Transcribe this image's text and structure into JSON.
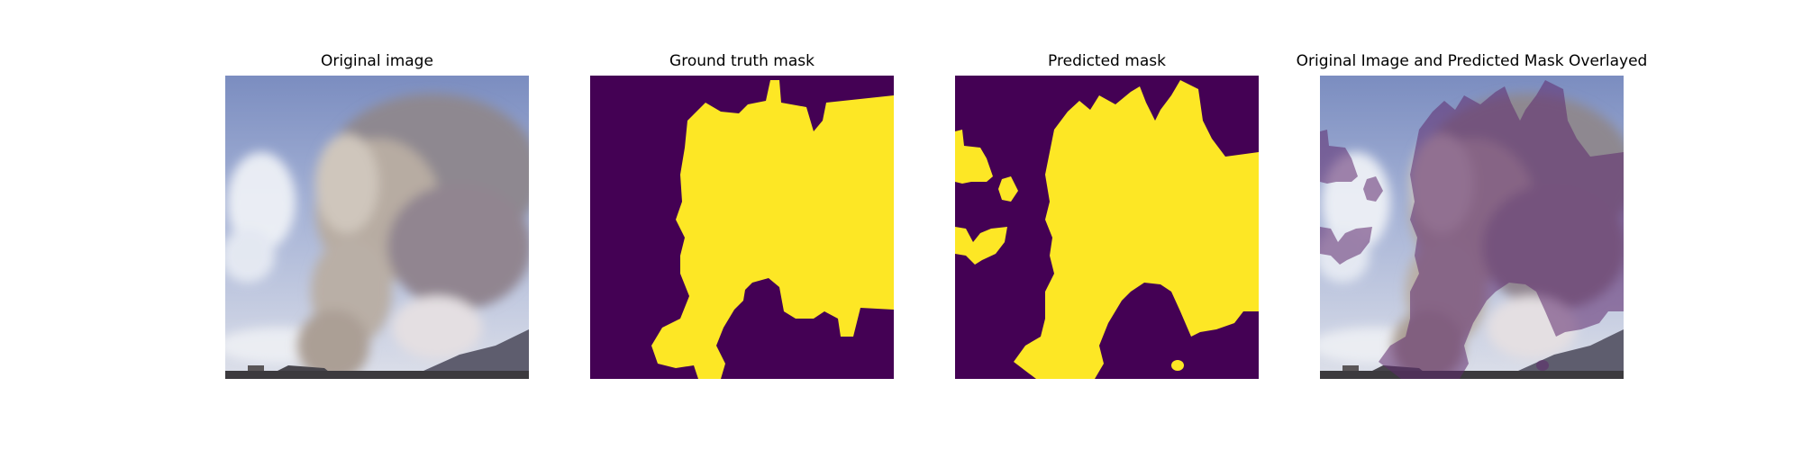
{
  "panels": [
    {
      "title": "Original image"
    },
    {
      "title": "Ground truth mask"
    },
    {
      "title": "Predicted mask"
    },
    {
      "title": "Original Image and Predicted Mask Overlayed"
    }
  ],
  "colors": {
    "mask_background": "#440154",
    "mask_foreground": "#FDE725",
    "sky_top": "#7d8fc2",
    "sky_bottom": "#d6dae8",
    "smoke": "#a39890",
    "overlay_tint": "#5a2a6a"
  }
}
